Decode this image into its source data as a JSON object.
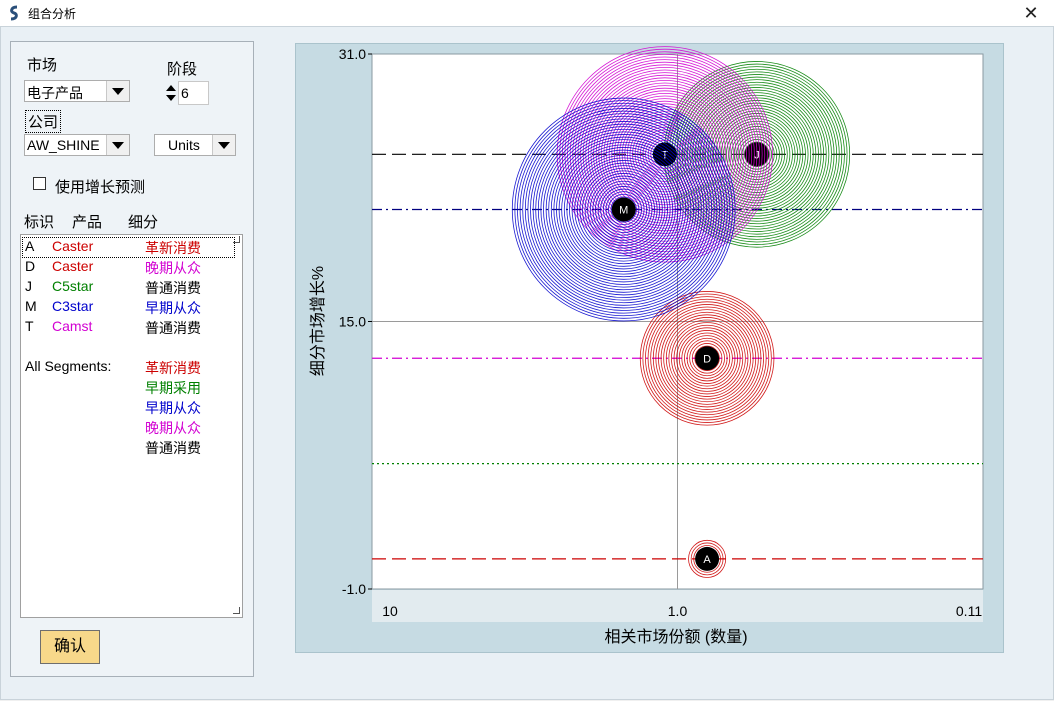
{
  "window": {
    "title": "组合分析",
    "close_glyph": "✕"
  },
  "controls": {
    "market_label": "市场",
    "market_value": "电子产品",
    "stage_label": "阶段",
    "stage_value": "6",
    "company_label": "公司",
    "company_value": "AW_SHINE",
    "unit_value": "Units",
    "growth_forecast_label": "使用增长预测",
    "growth_forecast_checked": false,
    "ok_button": "确认"
  },
  "list": {
    "headers": [
      "标识",
      "产品",
      "细分"
    ],
    "rows": [
      {
        "id": "A",
        "product": "Caster",
        "product_color": "#cc0000",
        "segment": "革新消费",
        "segment_color": "#cc0000"
      },
      {
        "id": "D",
        "product": "Caster",
        "product_color": "#cc0000",
        "segment": "晚期从众",
        "segment_color": "#d200d2"
      },
      {
        "id": "J",
        "product": "C5star",
        "product_color": "#008000",
        "segment": "普通消费",
        "segment_color": "#000000"
      },
      {
        "id": "M",
        "product": "C3star",
        "product_color": "#0000cc",
        "segment": "早期从众",
        "segment_color": "#0000cc"
      },
      {
        "id": "T",
        "product": "Camst",
        "product_color": "#d200d2",
        "segment": "普通消费",
        "segment_color": "#000000"
      }
    ],
    "all_segments_label": "All Segments:",
    "all_segments": [
      {
        "name": "革新消费",
        "color": "#cc0000"
      },
      {
        "name": "早期采用",
        "color": "#008000"
      },
      {
        "name": "早期从众",
        "color": "#0000cc"
      },
      {
        "name": "晚期从众",
        "color": "#d200d2"
      },
      {
        "name": "普通消费",
        "color": "#000000"
      }
    ]
  },
  "chart_data": {
    "type": "scatter",
    "xlabel": "相关市场份额 (数量)",
    "ylabel": "细分市场增长%",
    "x_ticks": [
      "10",
      "1.0",
      "0.11"
    ],
    "y_ticks": [
      "31.0",
      "15.0",
      "-1.0"
    ],
    "x_scale": "log, reversed",
    "xlim": [
      10,
      0.1
    ],
    "ylim": [
      -1,
      31
    ],
    "ref_lines": [
      {
        "y": 25.0,
        "style": "long-dash",
        "color": "#000000"
      },
      {
        "y": 21.7,
        "style": "dash-dot",
        "color": "#000080"
      },
      {
        "y": 12.8,
        "style": "dash-dot",
        "color": "#d200d2"
      },
      {
        "y": 6.5,
        "style": "dot",
        "color": "#008000"
      },
      {
        "y": 0.8,
        "style": "long-dash",
        "color": "#cc0000"
      }
    ],
    "points": [
      {
        "label": "A",
        "x": 0.8,
        "y": 0.8,
        "bubble_size": 0.1,
        "color": "#cc0000"
      },
      {
        "label": "D",
        "x": 0.8,
        "y": 12.8,
        "bubble_size": 0.36,
        "color": "#cc0000"
      },
      {
        "label": "J",
        "x": 0.55,
        "y": 25.0,
        "bubble_size": 0.5,
        "color": "#008000"
      },
      {
        "label": "T",
        "x": 1.1,
        "y": 25.0,
        "bubble_size": 0.58,
        "color": "#d200d2"
      },
      {
        "label": "M",
        "x": 1.5,
        "y": 21.7,
        "bubble_size": 0.6,
        "color": "#0000cc"
      }
    ]
  }
}
